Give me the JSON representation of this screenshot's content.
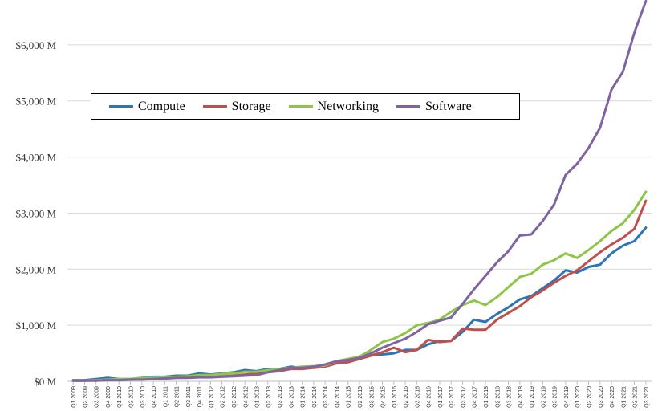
{
  "chart_data": {
    "type": "line",
    "title": "",
    "xlabel": "",
    "ylabel": "",
    "ylim": [
      0,
      6800
    ],
    "y_ticks": [
      0,
      1000,
      2000,
      3000,
      4000,
      5000,
      6000
    ],
    "y_tick_labels": [
      "$0 M",
      "$1,000 M",
      "$2,000 M",
      "$3,000 M",
      "$4,000 M",
      "$5,000 M",
      "$6,000 M"
    ],
    "grid": true,
    "legend_placement": "top-left",
    "categories": [
      "Q1 2009",
      "Q2 2009",
      "Q3 2009",
      "Q4 2009",
      "Q1 2010",
      "Q2 2010",
      "Q3 2010",
      "Q4 2010",
      "Q1 2011",
      "Q2 2011",
      "Q3 2011",
      "Q4 2011",
      "Q1 2012",
      "Q2 2012",
      "Q3 2012",
      "Q4 2012",
      "Q1 2013",
      "Q2 2013",
      "Q3 2013",
      "Q4 2013",
      "Q1 2014",
      "Q2 2014",
      "Q3 2014",
      "Q4 2014",
      "Q1 2015",
      "Q2 2015",
      "Q3 2015",
      "Q4 2015",
      "Q1 2016",
      "Q2 2016",
      "Q3 2016",
      "Q4 2016",
      "Q1 2017",
      "Q2 2017",
      "Q3 2017",
      "Q4 2017",
      "Q1 2018",
      "Q2 2018",
      "Q3 2018",
      "Q4 2018",
      "Q1 2019",
      "Q2 2019",
      "Q3 2019",
      "Q4 2019",
      "Q1 2020",
      "Q2 2020",
      "Q3 2020",
      "Q4 2020",
      "Q1 2021",
      "Q2 2021",
      "Q3 2021"
    ],
    "series": [
      {
        "name": "Compute",
        "color": "#2e75b6",
        "values": [
          20,
          20,
          40,
          60,
          40,
          40,
          60,
          80,
          80,
          100,
          100,
          140,
          120,
          140,
          160,
          200,
          180,
          220,
          220,
          260,
          240,
          260,
          280,
          340,
          360,
          400,
          460,
          480,
          500,
          560,
          560,
          660,
          720,
          720,
          880,
          1100,
          1060,
          1200,
          1320,
          1460,
          1520,
          1660,
          1800,
          1980,
          1940,
          2040,
          2080,
          2280,
          2420,
          2500,
          2740
        ]
      },
      {
        "name": "Storage",
        "color": "#c0504d",
        "values": [
          10,
          10,
          20,
          30,
          20,
          30,
          40,
          40,
          50,
          60,
          70,
          80,
          80,
          90,
          100,
          120,
          140,
          160,
          180,
          220,
          220,
          240,
          260,
          320,
          340,
          400,
          460,
          520,
          600,
          520,
          560,
          740,
          700,
          720,
          940,
          920,
          920,
          1100,
          1220,
          1340,
          1500,
          1620,
          1760,
          1880,
          1980,
          2140,
          2300,
          2440,
          2560,
          2720,
          3220
        ]
      },
      {
        "name": "Networking",
        "color": "#8ec549",
        "values": [
          10,
          10,
          20,
          30,
          40,
          40,
          60,
          60,
          70,
          80,
          90,
          110,
          110,
          130,
          140,
          170,
          170,
          200,
          220,
          240,
          260,
          270,
          280,
          360,
          400,
          440,
          560,
          700,
          760,
          860,
          1000,
          1040,
          1100,
          1240,
          1360,
          1440,
          1360,
          1500,
          1680,
          1860,
          1920,
          2080,
          2160,
          2280,
          2200,
          2340,
          2500,
          2680,
          2820,
          3060,
          3380
        ]
      },
      {
        "name": "Software",
        "color": "#8064a2",
        "values": [
          10,
          10,
          10,
          20,
          20,
          30,
          30,
          40,
          50,
          60,
          60,
          70,
          70,
          80,
          90,
          100,
          110,
          160,
          200,
          240,
          240,
          260,
          300,
          360,
          380,
          420,
          500,
          600,
          680,
          760,
          880,
          1020,
          1080,
          1140,
          1380,
          1640,
          1880,
          2120,
          2320,
          2600,
          2620,
          2860,
          3160,
          3680,
          3880,
          4160,
          4520,
          5200,
          5520,
          6220,
          6780
        ]
      }
    ]
  }
}
